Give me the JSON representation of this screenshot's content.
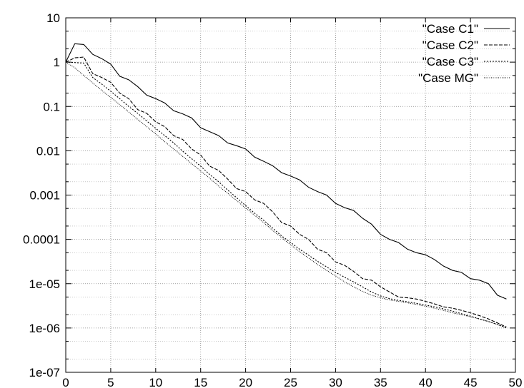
{
  "chart_data": {
    "type": "line",
    "title": "",
    "xlabel": "",
    "ylabel": "",
    "xlim": [
      0,
      50
    ],
    "ylim": [
      1e-07,
      10
    ],
    "y_scale": "log",
    "grid": true,
    "legend_position": "top-right",
    "x_ticks": [
      "0",
      "5",
      "10",
      "15",
      "20",
      "25",
      "30",
      "35",
      "40",
      "45",
      "50"
    ],
    "y_ticks": [
      "1e-07",
      "1e-06",
      "1e-05",
      "0.0001",
      "0.001",
      "0.01",
      "0.1",
      "1",
      "10"
    ],
    "series": [
      {
        "name": "\"Case C1\"",
        "style": "solid",
        "x": [
          0,
          1,
          2,
          3,
          4,
          5,
          6,
          7,
          8,
          9,
          10,
          11,
          12,
          13,
          14,
          15,
          16,
          17,
          18,
          19,
          20,
          21,
          22,
          23,
          24,
          25,
          26,
          27,
          28,
          29,
          30,
          31,
          32,
          33,
          34,
          35,
          36,
          37,
          38,
          39,
          40,
          41,
          42,
          43,
          44,
          45,
          46,
          47,
          48,
          49
        ],
        "values": [
          1.0,
          2.6,
          2.5,
          1.5,
          1.2,
          0.9,
          0.48,
          0.4,
          0.28,
          0.18,
          0.15,
          0.12,
          0.08,
          0.068,
          0.055,
          0.033,
          0.027,
          0.022,
          0.015,
          0.013,
          0.011,
          0.0072,
          0.0058,
          0.0046,
          0.0032,
          0.0027,
          0.0022,
          0.0015,
          0.0012,
          0.001,
          0.00065,
          0.00052,
          0.00045,
          0.0003,
          0.00022,
          0.00013,
          0.0001,
          8.5e-05,
          6e-05,
          5e-05,
          4.5e-05,
          3.5e-05,
          2.5e-05,
          2e-05,
          1.8e-05,
          1.3e-05,
          1.2e-05,
          1e-05,
          5.5e-06,
          4.5e-06
        ]
      },
      {
        "name": "\"Case C2\"",
        "style": "dashed",
        "x": [
          0,
          1,
          2,
          3,
          4,
          5,
          6,
          7,
          8,
          9,
          10,
          11,
          12,
          13,
          14,
          15,
          16,
          17,
          18,
          19,
          20,
          21,
          22,
          23,
          24,
          25,
          26,
          27,
          28,
          29,
          30,
          31,
          32,
          33,
          34,
          35,
          36,
          37,
          38,
          39,
          40,
          41,
          42,
          43,
          44,
          45,
          46,
          47,
          48,
          49
        ],
        "values": [
          1.0,
          1.25,
          1.3,
          0.55,
          0.45,
          0.35,
          0.2,
          0.15,
          0.085,
          0.07,
          0.045,
          0.035,
          0.022,
          0.018,
          0.011,
          0.008,
          0.0045,
          0.0036,
          0.0023,
          0.0014,
          0.0012,
          0.00078,
          0.00065,
          0.00042,
          0.00024,
          0.0002,
          0.00013,
          0.0001,
          6e-05,
          5e-05,
          3.1e-05,
          2.6e-05,
          1.9e-05,
          1.3e-05,
          1.2e-05,
          8.5e-06,
          6.5e-06,
          5e-06,
          4.8e-06,
          4.5e-06,
          4e-06,
          3.5e-06,
          3e-06,
          2.8e-06,
          2.5e-06,
          2.2e-06,
          1.9e-06,
          1.6e-06,
          1.3e-06,
          1.05e-06
        ]
      },
      {
        "name": "\"Case C3\"",
        "style": "dotted",
        "x": [
          0,
          1,
          2,
          3,
          4,
          5,
          6,
          7,
          8,
          9,
          10,
          11,
          12,
          13,
          14,
          15,
          16,
          17,
          18,
          19,
          20,
          21,
          22,
          23,
          24,
          25,
          26,
          27,
          28,
          29,
          30,
          31,
          32,
          33,
          34,
          35,
          36,
          37,
          38,
          39,
          40,
          41,
          42,
          43,
          44,
          45,
          46,
          47,
          48,
          49
        ],
        "values": [
          1.0,
          0.98,
          0.95,
          0.45,
          0.32,
          0.22,
          0.15,
          0.1,
          0.07,
          0.047,
          0.032,
          0.022,
          0.015,
          0.0098,
          0.0066,
          0.0045,
          0.0029,
          0.002,
          0.0013,
          0.00087,
          0.00058,
          0.00039,
          0.00027,
          0.00018,
          0.00012,
          8.5e-05,
          6e-05,
          4.4e-05,
          3.2e-05,
          2.4e-05,
          1.8e-05,
          1.4e-05,
          1.1e-05,
          8.5e-06,
          6.5e-06,
          5.3e-06,
          4.6e-06,
          4.2e-06,
          3.9e-06,
          3.6e-06,
          3.3e-06,
          3e-06,
          2.7e-06,
          2.4e-06,
          2.1e-06,
          1.85e-06,
          1.6e-06,
          1.4e-06,
          1.2e-06,
          1.02e-06
        ]
      },
      {
        "name": "\"Case MG\"",
        "style": "dotted-fine",
        "x": [
          0,
          1,
          2,
          3,
          4,
          5,
          6,
          7,
          8,
          9,
          10,
          11,
          12,
          13,
          14,
          15,
          16,
          17,
          18,
          19,
          20,
          21,
          22,
          23,
          24,
          25,
          26,
          27,
          28,
          29,
          30,
          31,
          32,
          33,
          34,
          35,
          36,
          37,
          38,
          39,
          40,
          41,
          42,
          43,
          44,
          45,
          46,
          47,
          48,
          49
        ],
        "values": [
          1.0,
          0.75,
          0.5,
          0.34,
          0.23,
          0.16,
          0.11,
          0.075,
          0.051,
          0.035,
          0.024,
          0.016,
          0.011,
          0.0075,
          0.0051,
          0.0035,
          0.0024,
          0.0016,
          0.0011,
          0.00075,
          0.00051,
          0.00035,
          0.00024,
          0.00016,
          0.00011,
          7.5e-05,
          5.3e-05,
          3.8e-05,
          2.7e-05,
          2e-05,
          1.5e-05,
          1.1e-05,
          8.5e-06,
          6.7e-06,
          5.5e-06,
          4.8e-06,
          4.3e-06,
          4e-06,
          3.7e-06,
          3.4e-06,
          3.1e-06,
          2.8e-06,
          2.5e-06,
          2.2e-06,
          2e-06,
          1.8e-06,
          1.6e-06,
          1.4e-06,
          1.2e-06,
          1e-06
        ]
      }
    ]
  }
}
